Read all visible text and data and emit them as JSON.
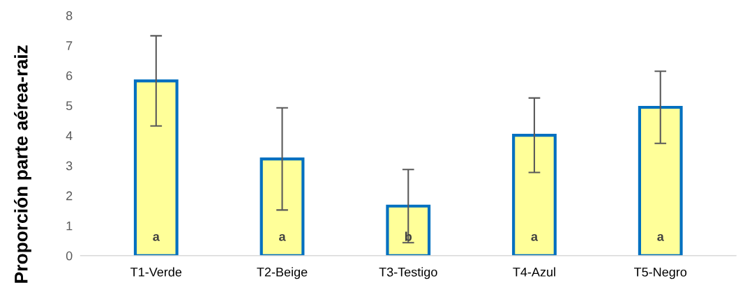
{
  "chart_data": {
    "type": "bar",
    "ylabel": "Proporción parte aérea-raiz",
    "categories": [
      "T1-Verde",
      "T2-Beige",
      "T3-Testigo",
      "T4-Azul",
      "T5-Negro"
    ],
    "series": [
      {
        "color": "#ffff99",
        "values": [
          5.82,
          3.22,
          1.65,
          4.01,
          4.94
        ],
        "errors": [
          1.5,
          1.7,
          1.22,
          1.24,
          1.2
        ]
      }
    ],
    "ylim": [
      0,
      8
    ],
    "yticks": [
      0,
      1,
      2,
      3,
      4,
      5,
      6,
      7,
      8
    ],
    "grid": false,
    "legend": false,
    "annotations": [
      "a",
      "a",
      "b",
      "a",
      "a"
    ]
  }
}
